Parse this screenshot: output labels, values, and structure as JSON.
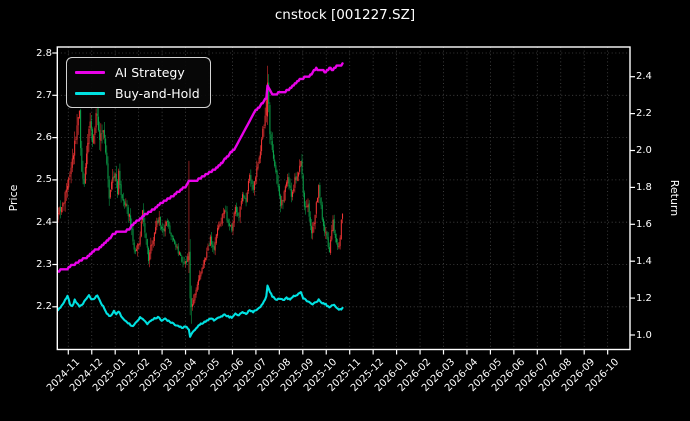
{
  "title": "cnstock [001227.SZ]",
  "legend": {
    "items": [
      {
        "label": "AI Strategy",
        "color": "#e903e9"
      },
      {
        "label": "Buy-and-Hold",
        "color": "#00e1e1"
      }
    ]
  },
  "axes": {
    "left": {
      "label": "Price",
      "tick_labels": [
        "2.2",
        "2.3",
        "2.4",
        "2.5",
        "2.6",
        "2.7",
        "2.8"
      ],
      "tick_values": [
        2.2,
        2.3,
        2.4,
        2.5,
        2.6,
        2.7,
        2.8
      ],
      "range": [
        2.099,
        2.814
      ]
    },
    "right": {
      "label": "Return",
      "tick_labels": [
        "1.0",
        "1.2",
        "1.4",
        "1.6",
        "1.8",
        "2.0",
        "2.2",
        "2.4"
      ],
      "tick_values": [
        1.0,
        1.2,
        1.4,
        1.6,
        1.8,
        2.0,
        2.2,
        2.4
      ],
      "range": [
        0.921,
        2.561
      ]
    },
    "x": {
      "tick_labels": [
        "2024-11",
        "2024-12",
        "2025-01",
        "2025-02",
        "2025-03",
        "2025-04",
        "2025-05",
        "2025-06",
        "2025-07",
        "2025-08",
        "2025-09",
        "2025-10",
        "2025-11",
        "2025-12",
        "2026-01",
        "2026-02",
        "2026-03",
        "2026-04",
        "2026-05",
        "2026-06",
        "2026-07",
        "2026-08",
        "2026-09",
        "2026-10"
      ]
    }
  },
  "chart_data": {
    "type": "candlestick",
    "title": "cnstock [001227.SZ]",
    "background": "#000000",
    "grid": "dotted",
    "grid_color": "#4a4a4a",
    "x_axis_note": "axis spans 2024-11 to 2026-10; plotted data spans 2024-11 to mid 2025-10 (~240 trading days)",
    "num_days": 240,
    "price_axis_range": [
      2.099,
      2.814
    ],
    "return_axis_range": [
      0.921,
      2.561
    ],
    "candle_up_color": "#f03434",
    "candle_down_color": "#0aa24a",
    "noise_seed": 20241101,
    "close_anchors": [
      [
        0,
        2.42
      ],
      [
        3,
        2.44
      ],
      [
        6,
        2.46
      ],
      [
        9,
        2.5
      ],
      [
        13,
        2.565
      ],
      [
        16,
        2.63
      ],
      [
        18,
        2.655
      ],
      [
        20,
        2.52
      ],
      [
        22,
        2.5
      ],
      [
        24,
        2.56
      ],
      [
        27,
        2.645
      ],
      [
        29,
        2.6
      ],
      [
        31,
        2.635
      ],
      [
        33,
        2.655
      ],
      [
        35,
        2.6
      ],
      [
        38,
        2.625
      ],
      [
        41,
        2.55
      ],
      [
        43,
        2.46
      ],
      [
        45,
        2.49
      ],
      [
        48,
        2.52
      ],
      [
        50,
        2.47
      ],
      [
        51,
        2.53
      ],
      [
        53,
        2.46
      ],
      [
        55,
        2.45
      ],
      [
        58,
        2.43
      ],
      [
        61,
        2.4
      ],
      [
        63,
        2.355
      ],
      [
        65,
        2.33
      ],
      [
        68,
        2.345
      ],
      [
        71,
        2.42
      ],
      [
        73,
        2.38
      ],
      [
        76,
        2.315
      ],
      [
        79,
        2.35
      ],
      [
        82,
        2.39
      ],
      [
        85,
        2.41
      ],
      [
        88,
        2.375
      ],
      [
        91,
        2.405
      ],
      [
        94,
        2.38
      ],
      [
        97,
        2.36
      ],
      [
        100,
        2.34
      ],
      [
        103,
        2.315
      ],
      [
        106,
        2.3
      ],
      [
        108,
        2.31
      ],
      [
        110,
        2.33
      ],
      [
        111,
        2.22
      ],
      [
        113,
        2.21
      ],
      [
        116,
        2.245
      ],
      [
        119,
        2.27
      ],
      [
        122,
        2.3
      ],
      [
        125,
        2.33
      ],
      [
        128,
        2.36
      ],
      [
        131,
        2.34
      ],
      [
        134,
        2.38
      ],
      [
        137,
        2.405
      ],
      [
        140,
        2.43
      ],
      [
        143,
        2.4
      ],
      [
        146,
        2.38
      ],
      [
        149,
        2.44
      ],
      [
        152,
        2.41
      ],
      [
        155,
        2.47
      ],
      [
        158,
        2.45
      ],
      [
        161,
        2.51
      ],
      [
        164,
        2.48
      ],
      [
        167,
        2.53
      ],
      [
        170,
        2.575
      ],
      [
        173,
        2.63
      ],
      [
        175,
        2.68
      ],
      [
        176,
        2.73
      ],
      [
        178,
        2.62
      ],
      [
        181,
        2.56
      ],
      [
        184,
        2.49
      ],
      [
        187,
        2.44
      ],
      [
        190,
        2.47
      ],
      [
        193,
        2.5
      ],
      [
        196,
        2.46
      ],
      [
        199,
        2.5
      ],
      [
        202,
        2.52
      ],
      [
        204,
        2.55
      ],
      [
        206,
        2.46
      ],
      [
        208,
        2.43
      ],
      [
        210,
        2.44
      ],
      [
        213,
        2.37
      ],
      [
        216,
        2.42
      ],
      [
        219,
        2.48
      ],
      [
        222,
        2.41
      ],
      [
        225,
        2.37
      ],
      [
        228,
        2.33
      ],
      [
        231,
        2.4
      ],
      [
        233,
        2.36
      ],
      [
        236,
        2.34
      ],
      [
        238,
        2.4
      ],
      [
        239,
        2.42
      ]
    ],
    "volatility_anchors": [
      [
        0,
        0.02
      ],
      [
        14,
        0.032
      ],
      [
        34,
        0.03
      ],
      [
        45,
        0.024
      ],
      [
        60,
        0.02
      ],
      [
        75,
        0.022
      ],
      [
        90,
        0.015
      ],
      [
        104,
        0.014
      ],
      [
        112,
        0.02
      ],
      [
        120,
        0.014
      ],
      [
        140,
        0.016
      ],
      [
        158,
        0.018
      ],
      [
        170,
        0.022
      ],
      [
        176,
        0.03
      ],
      [
        186,
        0.026
      ],
      [
        200,
        0.022
      ],
      [
        214,
        0.02
      ],
      [
        239,
        0.015
      ]
    ],
    "candle_overrides": {
      "110": {
        "o": 2.31,
        "h": 2.545,
        "l": 2.28,
        "c": 2.33
      },
      "111": {
        "o": 2.33,
        "h": 2.36,
        "l": 2.18,
        "c": 2.22
      },
      "112": {
        "o": 2.22,
        "h": 2.25,
        "l": 2.16,
        "c": 2.2
      },
      "176": {
        "o": 2.65,
        "h": 2.77,
        "l": 2.63,
        "c": 2.73
      },
      "177": {
        "o": 2.73,
        "h": 2.75,
        "l": 2.66,
        "c": 2.68
      }
    },
    "series": [
      {
        "name": "AI Strategy",
        "axis": "return",
        "color": "#e903e9",
        "style": "step",
        "width": 2.4,
        "anchors": [
          [
            0,
            1.345
          ],
          [
            4,
            1.36
          ],
          [
            8,
            1.36
          ],
          [
            12,
            1.38
          ],
          [
            16,
            1.39
          ],
          [
            20,
            1.41
          ],
          [
            24,
            1.42
          ],
          [
            28,
            1.44
          ],
          [
            31,
            1.46
          ],
          [
            35,
            1.47
          ],
          [
            39,
            1.5
          ],
          [
            43,
            1.52
          ],
          [
            47,
            1.55
          ],
          [
            52,
            1.56
          ],
          [
            57,
            1.565
          ],
          [
            60,
            1.57
          ],
          [
            63,
            1.6
          ],
          [
            67,
            1.62
          ],
          [
            71,
            1.64
          ],
          [
            75,
            1.66
          ],
          [
            80,
            1.68
          ],
          [
            84,
            1.7
          ],
          [
            88,
            1.72
          ],
          [
            92,
            1.735
          ],
          [
            96,
            1.75
          ],
          [
            100,
            1.77
          ],
          [
            104,
            1.79
          ],
          [
            108,
            1.81
          ],
          [
            110,
            1.83
          ],
          [
            116,
            1.835
          ],
          [
            120,
            1.85
          ],
          [
            124,
            1.87
          ],
          [
            128,
            1.885
          ],
          [
            132,
            1.9
          ],
          [
            136,
            1.925
          ],
          [
            140,
            1.95
          ],
          [
            144,
            1.98
          ],
          [
            148,
            2.01
          ],
          [
            152,
            2.05
          ],
          [
            156,
            2.1
          ],
          [
            160,
            2.15
          ],
          [
            164,
            2.2
          ],
          [
            168,
            2.23
          ],
          [
            172,
            2.26
          ],
          [
            175,
            2.285
          ],
          [
            176,
            2.35
          ],
          [
            179,
            2.31
          ],
          [
            182,
            2.3
          ],
          [
            185,
            2.31
          ],
          [
            189,
            2.315
          ],
          [
            193,
            2.325
          ],
          [
            197,
            2.35
          ],
          [
            201,
            2.375
          ],
          [
            205,
            2.39
          ],
          [
            208,
            2.4
          ],
          [
            211,
            2.405
          ],
          [
            214,
            2.42
          ],
          [
            217,
            2.45
          ],
          [
            219,
            2.43
          ],
          [
            222,
            2.44
          ],
          [
            225,
            2.425
          ],
          [
            228,
            2.445
          ],
          [
            231,
            2.44
          ],
          [
            234,
            2.455
          ],
          [
            237,
            2.46
          ],
          [
            239,
            2.47
          ]
        ]
      },
      {
        "name": "Buy-and-Hold",
        "axis": "return",
        "color": "#00e1e1",
        "style": "line",
        "width": 2.1,
        "anchors": [
          [
            0,
            1.135
          ],
          [
            3,
            1.16
          ],
          [
            6,
            1.19
          ],
          [
            8,
            1.21
          ],
          [
            10,
            1.17
          ],
          [
            12,
            1.155
          ],
          [
            14,
            1.19
          ],
          [
            16,
            1.17
          ],
          [
            18,
            1.155
          ],
          [
            21,
            1.17
          ],
          [
            24,
            1.2
          ],
          [
            26,
            1.215
          ],
          [
            28,
            1.19
          ],
          [
            31,
            1.2
          ],
          [
            33,
            1.215
          ],
          [
            36,
            1.17
          ],
          [
            38,
            1.155
          ],
          [
            41,
            1.12
          ],
          [
            44,
            1.1
          ],
          [
            47,
            1.13
          ],
          [
            49,
            1.11
          ],
          [
            51,
            1.13
          ],
          [
            54,
            1.09
          ],
          [
            57,
            1.075
          ],
          [
            60,
            1.06
          ],
          [
            63,
            1.045
          ],
          [
            66,
            1.07
          ],
          [
            69,
            1.095
          ],
          [
            72,
            1.08
          ],
          [
            75,
            1.06
          ],
          [
            78,
            1.075
          ],
          [
            81,
            1.09
          ],
          [
            84,
            1.095
          ],
          [
            87,
            1.08
          ],
          [
            90,
            1.09
          ],
          [
            93,
            1.075
          ],
          [
            96,
            1.065
          ],
          [
            99,
            1.055
          ],
          [
            102,
            1.045
          ],
          [
            105,
            1.04
          ],
          [
            108,
            1.045
          ],
          [
            110,
            1.03
          ],
          [
            111,
            0.99
          ],
          [
            112,
            1.005
          ],
          [
            114,
            1.02
          ],
          [
            117,
            1.045
          ],
          [
            120,
            1.06
          ],
          [
            123,
            1.07
          ],
          [
            126,
            1.08
          ],
          [
            129,
            1.09
          ],
          [
            131,
            1.08
          ],
          [
            134,
            1.09
          ],
          [
            137,
            1.1
          ],
          [
            140,
            1.11
          ],
          [
            143,
            1.1
          ],
          [
            146,
            1.095
          ],
          [
            149,
            1.115
          ],
          [
            152,
            1.105
          ],
          [
            155,
            1.125
          ],
          [
            158,
            1.115
          ],
          [
            161,
            1.135
          ],
          [
            164,
            1.125
          ],
          [
            167,
            1.14
          ],
          [
            170,
            1.155
          ],
          [
            173,
            1.18
          ],
          [
            175,
            1.21
          ],
          [
            176,
            1.27
          ],
          [
            178,
            1.235
          ],
          [
            180,
            1.21
          ],
          [
            183,
            1.19
          ],
          [
            186,
            1.2
          ],
          [
            189,
            1.19
          ],
          [
            192,
            1.2
          ],
          [
            195,
            1.195
          ],
          [
            198,
            1.21
          ],
          [
            201,
            1.22
          ],
          [
            204,
            1.235
          ],
          [
            206,
            1.2
          ],
          [
            208,
            1.19
          ],
          [
            211,
            1.18
          ],
          [
            213,
            1.165
          ],
          [
            216,
            1.175
          ],
          [
            219,
            1.19
          ],
          [
            222,
            1.175
          ],
          [
            225,
            1.165
          ],
          [
            228,
            1.15
          ],
          [
            231,
            1.165
          ],
          [
            233,
            1.155
          ],
          [
            236,
            1.14
          ],
          [
            238,
            1.135
          ],
          [
            239,
            1.145
          ]
        ]
      }
    ]
  }
}
